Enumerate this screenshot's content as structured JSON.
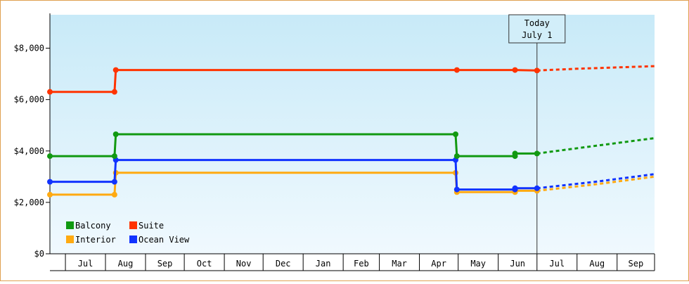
{
  "chart_data": {
    "type": "line",
    "y_ticks": [
      {
        "value": 0,
        "label": "$0"
      },
      {
        "value": 2000,
        "label": "$2,000"
      },
      {
        "value": 4000,
        "label": "$4,000"
      },
      {
        "value": 6000,
        "label": "$6,000"
      },
      {
        "value": 8000,
        "label": "$8,000"
      }
    ],
    "ylim": [
      0,
      9300
    ],
    "x_months": [
      "Jul",
      "Aug",
      "Sep",
      "Oct",
      "Nov",
      "Dec",
      "Jan",
      "Feb",
      "Mar",
      "Apr",
      "May",
      "Jun",
      "Jul",
      "Aug",
      "Sep"
    ],
    "x_start": "2017-06-19",
    "x_end": "2018-09-30",
    "today_date": "2018-07-01",
    "today_label_line1": "Today",
    "today_label_line2": "July 1",
    "series": [
      {
        "name": "Suite",
        "color": "#ff3300",
        "points": [
          {
            "date": "2017-06-19",
            "value": 6300
          },
          {
            "date": "2017-08-08",
            "value": 6300
          },
          {
            "date": "2017-08-09",
            "value": 7150
          },
          {
            "date": "2018-04-30",
            "value": 7150
          },
          {
            "date": "2018-06-14",
            "value": 7150
          },
          {
            "date": "2018-07-01",
            "value": 7130
          }
        ],
        "forecast": [
          {
            "date": "2018-07-01",
            "value": 7130
          },
          {
            "date": "2018-08-01",
            "value": 7200
          },
          {
            "date": "2018-09-30",
            "value": 7300
          }
        ]
      },
      {
        "name": "Balcony",
        "color": "#119911",
        "points": [
          {
            "date": "2017-06-19",
            "value": 3800
          },
          {
            "date": "2017-08-08",
            "value": 3800
          },
          {
            "date": "2017-08-09",
            "value": 4650
          },
          {
            "date": "2018-04-29",
            "value": 4650
          },
          {
            "date": "2018-04-30",
            "value": 3800
          },
          {
            "date": "2018-06-14",
            "value": 3800
          },
          {
            "date": "2018-06-14",
            "value": 3900
          },
          {
            "date": "2018-07-01",
            "value": 3900
          }
        ],
        "forecast": [
          {
            "date": "2018-07-01",
            "value": 3900
          },
          {
            "date": "2018-08-15",
            "value": 4200
          },
          {
            "date": "2018-09-30",
            "value": 4500
          }
        ]
      },
      {
        "name": "Ocean View",
        "color": "#1133ff",
        "points": [
          {
            "date": "2017-06-19",
            "value": 2800
          },
          {
            "date": "2017-08-08",
            "value": 2800
          },
          {
            "date": "2017-08-09",
            "value": 3650
          },
          {
            "date": "2018-04-29",
            "value": 3650
          },
          {
            "date": "2018-04-30",
            "value": 2500
          },
          {
            "date": "2018-06-14",
            "value": 2500
          },
          {
            "date": "2018-06-14",
            "value": 2550
          },
          {
            "date": "2018-07-01",
            "value": 2550
          }
        ],
        "forecast": [
          {
            "date": "2018-07-01",
            "value": 2550
          },
          {
            "date": "2018-08-15",
            "value": 2800
          },
          {
            "date": "2018-09-30",
            "value": 3100
          }
        ]
      },
      {
        "name": "Interior",
        "color": "#ffaa11",
        "points": [
          {
            "date": "2017-06-19",
            "value": 2300
          },
          {
            "date": "2017-08-08",
            "value": 2300
          },
          {
            "date": "2017-08-09",
            "value": 3150
          },
          {
            "date": "2018-04-29",
            "value": 3150
          },
          {
            "date": "2018-04-30",
            "value": 2400
          },
          {
            "date": "2018-06-14",
            "value": 2400
          },
          {
            "date": "2018-06-14",
            "value": 2450
          },
          {
            "date": "2018-07-01",
            "value": 2450
          }
        ],
        "forecast": [
          {
            "date": "2018-07-01",
            "value": 2450
          },
          {
            "date": "2018-08-15",
            "value": 2700
          },
          {
            "date": "2018-09-30",
            "value": 3000
          }
        ]
      }
    ],
    "legend": [
      {
        "name": "Balcony",
        "color": "#119911"
      },
      {
        "name": "Suite",
        "color": "#ff3300"
      },
      {
        "name": "Interior",
        "color": "#ffaa11"
      },
      {
        "name": "Ocean View",
        "color": "#1133ff"
      }
    ],
    "legend_position": "bottom-left",
    "grid": false,
    "background_gradient": [
      "#c8eaf8",
      "#f0f9fe"
    ]
  }
}
